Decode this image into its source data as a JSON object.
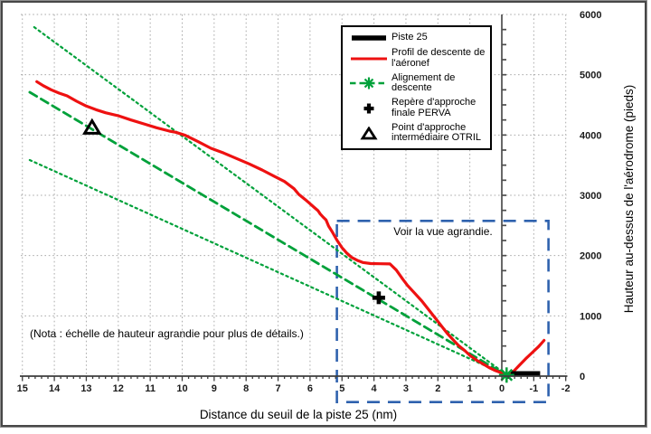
{
  "figure": {
    "note": "(Nota : échelle de hauteur agrandie pour plus de détails.)",
    "inset_label": "Voir la vue agrandie."
  },
  "colors": {
    "profile": "#ee1111",
    "glide": "#00a13a",
    "runway": "#000000",
    "inset_box": "#2f62ae",
    "grid": "#ababab",
    "axis": "#3d3d3d"
  },
  "chart_data": {
    "type": "line",
    "title": "",
    "xlabel": "Distance du seuil de la piste 25 (nm)",
    "ylabel": "Hauteur au-dessus de l'aérodrome (pieds)",
    "x_axis_reversed": true,
    "xlim": [
      15.1,
      -2.05
    ],
    "ylim": [
      0,
      6000
    ],
    "x_ticks": [
      15,
      14,
      13,
      12,
      11,
      10,
      9,
      8,
      7,
      6,
      5,
      4,
      3,
      2,
      1,
      0,
      -1,
      -2
    ],
    "y_ticks": [
      0,
      1000,
      2000,
      3000,
      4000,
      5000,
      6000
    ],
    "x_minor_step": 0.2,
    "y_minor_step": 250,
    "grid": true,
    "legend_position": "top-right",
    "legend": [
      {
        "label": "Piste 25",
        "swatch": "runway-line"
      },
      {
        "label": "Profil de descente de l'aéronef",
        "swatch": "red-line"
      },
      {
        "label": "Alignement de descente",
        "swatch": "green-dashed-with-star"
      },
      {
        "label": "Repère d'approche finale PERVA",
        "swatch": "plus-marker"
      },
      {
        "label": "Point d'approche intermédiaire OTRIL",
        "swatch": "triangle-marker"
      }
    ],
    "series": [
      {
        "id": "limite-superieure-alignement",
        "name": "Alignement de descente (limite supérieure)",
        "style": "dotted",
        "color": "#00a13a",
        "width": 2.2,
        "points": [
          [
            14.63,
            5790
          ],
          [
            -0.14,
            25
          ]
        ]
      },
      {
        "id": "limite-inferieure-alignement",
        "name": "Alignement de descente (limite inférieure)",
        "style": "dotted",
        "color": "#00a13a",
        "width": 2.2,
        "points": [
          [
            14.77,
            3585
          ],
          [
            -0.16,
            10
          ]
        ]
      },
      {
        "id": "alignement-descente",
        "name": "Alignement de descente",
        "style": "dashed",
        "color": "#00a13a",
        "width": 2.8,
        "points": [
          [
            14.77,
            4710
          ],
          [
            -0.15,
            10
          ]
        ]
      },
      {
        "id": "profil-descente",
        "name": "Profil de descente de l'aéronef",
        "style": "solid",
        "color": "#ee1111",
        "width": 3.2,
        "points": [
          [
            14.55,
            4885
          ],
          [
            14.35,
            4820
          ],
          [
            14.1,
            4750
          ],
          [
            13.85,
            4695
          ],
          [
            13.6,
            4650
          ],
          [
            13.3,
            4560
          ],
          [
            13.0,
            4480
          ],
          [
            12.7,
            4420
          ],
          [
            12.4,
            4370
          ],
          [
            12.0,
            4320
          ],
          [
            11.6,
            4250
          ],
          [
            11.2,
            4185
          ],
          [
            10.8,
            4120
          ],
          [
            10.4,
            4065
          ],
          [
            10.2,
            4045
          ],
          [
            9.9,
            3995
          ],
          [
            9.5,
            3890
          ],
          [
            9.1,
            3780
          ],
          [
            8.7,
            3700
          ],
          [
            8.3,
            3610
          ],
          [
            7.9,
            3520
          ],
          [
            7.5,
            3420
          ],
          [
            7.1,
            3310
          ],
          [
            6.8,
            3230
          ],
          [
            6.5,
            3110
          ],
          [
            6.35,
            3015
          ],
          [
            6.15,
            2930
          ],
          [
            6.0,
            2860
          ],
          [
            5.85,
            2790
          ],
          [
            5.75,
            2745
          ],
          [
            5.68,
            2690
          ],
          [
            5.6,
            2645
          ],
          [
            5.5,
            2590
          ],
          [
            5.42,
            2490
          ],
          [
            5.3,
            2390
          ],
          [
            5.15,
            2250
          ],
          [
            5.0,
            2130
          ],
          [
            4.85,
            2040
          ],
          [
            4.7,
            1970
          ],
          [
            4.5,
            1915
          ],
          [
            4.35,
            1885
          ],
          [
            4.1,
            1868
          ],
          [
            3.8,
            1865
          ],
          [
            3.5,
            1862
          ],
          [
            3.3,
            1760
          ],
          [
            3.1,
            1610
          ],
          [
            2.95,
            1505
          ],
          [
            2.7,
            1360
          ],
          [
            2.5,
            1245
          ],
          [
            2.3,
            1110
          ],
          [
            2.1,
            975
          ],
          [
            1.9,
            840
          ],
          [
            1.7,
            705
          ],
          [
            1.5,
            590
          ],
          [
            1.35,
            505
          ],
          [
            1.15,
            420
          ],
          [
            1.0,
            345
          ],
          [
            0.8,
            268
          ],
          [
            0.6,
            205
          ],
          [
            0.4,
            142
          ],
          [
            0.2,
            92
          ],
          [
            0.0,
            52
          ],
          [
            -0.12,
            38
          ],
          [
            -0.25,
            35
          ],
          [
            -0.38,
            85
          ],
          [
            -0.55,
            180
          ],
          [
            -0.75,
            290
          ],
          [
            -0.95,
            390
          ],
          [
            -1.15,
            490
          ],
          [
            -1.32,
            592
          ]
        ]
      },
      {
        "id": "piste-25",
        "name": "Piste 25",
        "style": "runway",
        "color": "#000000",
        "width": 6,
        "points": [
          [
            -0.28,
            38
          ],
          [
            -1.2,
            38
          ]
        ]
      }
    ],
    "markers": [
      {
        "id": "otril-triangle",
        "label": "Point d'approche intermédiaire OTRIL",
        "shape": "triangle",
        "x": 12.82,
        "y": 4120,
        "color": "#000000"
      },
      {
        "id": "perva-plus",
        "label": "Repère d'approche finale PERVA",
        "shape": "plus",
        "x": 3.85,
        "y": 1300,
        "color": "#000000"
      },
      {
        "id": "seuil-star",
        "label": "Alignement de descente (seuil)",
        "shape": "star",
        "x": -0.15,
        "y": 18,
        "color": "#00a13a"
      }
    ],
    "zero_line_x": 0,
    "inset_box": {
      "x_from": 5.16,
      "x_to": -1.46,
      "y_from": 2575,
      "y_to": -430,
      "label": "Voir la vue agrandie."
    }
  }
}
